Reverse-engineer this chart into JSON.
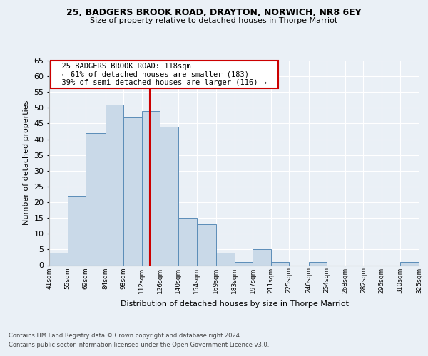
{
  "title1": "25, BADGERS BROOK ROAD, DRAYTON, NORWICH, NR8 6EY",
  "title2": "Size of property relative to detached houses in Thorpe Marriot",
  "xlabel": "Distribution of detached houses by size in Thorpe Marriot",
  "ylabel": "Number of detached properties",
  "footer1": "Contains HM Land Registry data © Crown copyright and database right 2024.",
  "footer2": "Contains public sector information licensed under the Open Government Licence v3.0.",
  "annotation_line1": "25 BADGERS BROOK ROAD: 118sqm",
  "annotation_line2": "← 61% of detached houses are smaller (183)",
  "annotation_line3": "39% of semi-detached houses are larger (116) →",
  "bar_left_edges": [
    41,
    55,
    69,
    84,
    98,
    112,
    126,
    140,
    154,
    169,
    183,
    197,
    211,
    225,
    240,
    254,
    268,
    282,
    296,
    310
  ],
  "bar_widths": [
    14,
    14,
    15,
    14,
    14,
    14,
    14,
    14,
    15,
    14,
    14,
    14,
    14,
    15,
    14,
    14,
    14,
    14,
    14,
    15
  ],
  "bar_heights": [
    4,
    22,
    42,
    51,
    47,
    49,
    44,
    15,
    13,
    4,
    1,
    5,
    1,
    0,
    1,
    0,
    0,
    0,
    0,
    1
  ],
  "bar_color": "#c9d9e8",
  "bar_edge_color": "#5b8db8",
  "vline_color": "#cc0000",
  "vline_x": 118,
  "ylim": [
    0,
    65
  ],
  "yticks": [
    0,
    5,
    10,
    15,
    20,
    25,
    30,
    35,
    40,
    45,
    50,
    55,
    60,
    65
  ],
  "bg_color": "#eaf0f6",
  "plot_bg_color": "#eaf0f6",
  "grid_color": "#ffffff",
  "tick_labels": [
    "41sqm",
    "55sqm",
    "69sqm",
    "84sqm",
    "98sqm",
    "112sqm",
    "126sqm",
    "140sqm",
    "154sqm",
    "169sqm",
    "183sqm",
    "197sqm",
    "211sqm",
    "225sqm",
    "240sqm",
    "254sqm",
    "268sqm",
    "282sqm",
    "296sqm",
    "310sqm",
    "325sqm"
  ]
}
